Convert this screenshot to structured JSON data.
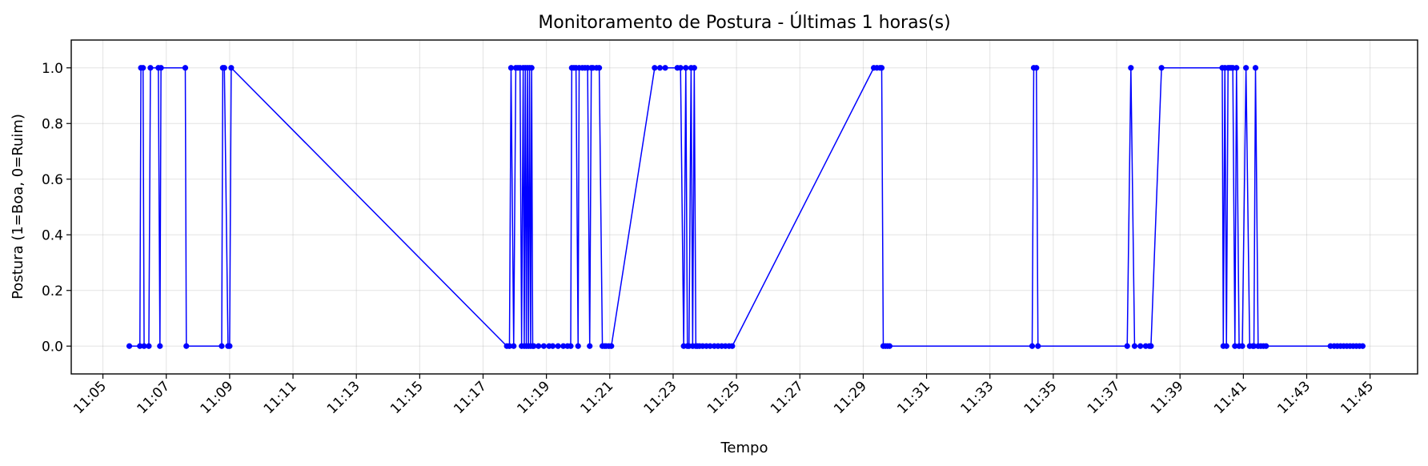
{
  "chart_data": {
    "type": "line",
    "title": "Monitoramento de Postura - Últimas 1 horas(s)",
    "xlabel": "Tempo",
    "ylabel": "Postura (1=Boa, 0=Ruim)",
    "grid": true,
    "line_color": "#0000ff",
    "marker": "circle",
    "xlim": [
      "11:04:00",
      "11:46:30"
    ],
    "ylim": [
      -0.1,
      1.1
    ],
    "x_ticks": [
      "11:05",
      "11:07",
      "11:09",
      "11:11",
      "11:13",
      "11:15",
      "11:17",
      "11:19",
      "11:21",
      "11:23",
      "11:25",
      "11:27",
      "11:29",
      "11:31",
      "11:33",
      "11:35",
      "11:37",
      "11:39",
      "11:41",
      "11:43",
      "11:45"
    ],
    "y_ticks": [
      "0.0",
      "0.2",
      "0.4",
      "0.6",
      "0.8",
      "1.0"
    ],
    "series": [
      {
        "x": [
          "11:05:50",
          "11:06:10",
          "11:06:12",
          "11:06:16",
          "11:06:18",
          "11:06:27",
          "11:06:30",
          "11:06:45",
          "11:06:48",
          "11:06:50",
          "11:07:36",
          "11:07:38",
          "11:08:45",
          "11:08:47",
          "11:08:50",
          "11:08:57",
          "11:09:00",
          "11:09:03",
          "11:17:45",
          "11:17:50",
          "11:17:53",
          "11:17:58",
          "11:18:02",
          "11:18:06",
          "11:18:10",
          "11:18:13",
          "11:18:16",
          "11:18:18",
          "11:18:20",
          "11:18:22",
          "11:18:24",
          "11:18:26",
          "11:18:28",
          "11:18:30",
          "11:18:32",
          "11:18:34",
          "11:18:36",
          "11:18:45",
          "11:18:55",
          "11:19:05",
          "11:19:12",
          "11:19:22",
          "11:19:32",
          "11:19:40",
          "11:19:46",
          "11:19:48",
          "11:19:52",
          "11:19:56",
          "11:20:00",
          "11:20:02",
          "11:20:08",
          "11:20:13",
          "11:20:18",
          "11:20:22",
          "11:20:25",
          "11:20:28",
          "11:20:35",
          "11:20:40",
          "11:20:46",
          "11:20:50",
          "11:20:53",
          "11:20:58",
          "11:21:03",
          "11:22:25",
          "11:22:35",
          "11:22:45",
          "11:23:08",
          "11:23:14",
          "11:23:20",
          "11:23:24",
          "11:23:27",
          "11:23:30",
          "11:23:34",
          "11:23:37",
          "11:23:40",
          "11:23:43",
          "11:23:46",
          "11:23:50",
          "11:23:56",
          "11:24:03",
          "11:24:10",
          "11:24:18",
          "11:24:25",
          "11:24:32",
          "11:24:39",
          "11:24:46",
          "11:24:52",
          "11:29:20",
          "11:29:26",
          "11:29:32",
          "11:29:35",
          "11:29:38",
          "11:29:42",
          "11:29:46",
          "11:29:50",
          "11:34:20",
          "11:34:23",
          "11:34:28",
          "11:34:31",
          "11:37:20",
          "11:37:27",
          "11:37:34",
          "11:37:45",
          "11:37:55",
          "11:38:02",
          "11:38:05",
          "11:38:25",
          "11:40:20",
          "11:40:22",
          "11:40:25",
          "11:40:28",
          "11:40:31",
          "11:40:34",
          "11:40:37",
          "11:40:40",
          "11:40:44",
          "11:40:47",
          "11:40:52",
          "11:40:58",
          "11:41:05",
          "11:41:12",
          "11:41:18",
          "11:41:20",
          "11:41:23",
          "11:41:28",
          "11:41:33",
          "11:41:38",
          "11:41:43",
          "11:43:45",
          "11:43:52",
          "11:43:58",
          "11:44:04",
          "11:44:10",
          "11:44:16",
          "11:44:22",
          "11:44:28",
          "11:44:34",
          "11:44:40",
          "11:44:46"
        ],
        "y": [
          0,
          0,
          1,
          1,
          0,
          0,
          1,
          1,
          0,
          1,
          1,
          0,
          0,
          1,
          1,
          0,
          0,
          1,
          0,
          0,
          1,
          0,
          1,
          1,
          1,
          0,
          1,
          0,
          1,
          0,
          1,
          0,
          1,
          0,
          1,
          0,
          0,
          0,
          0,
          0,
          0,
          0,
          0,
          0,
          0,
          1,
          1,
          1,
          0,
          1,
          1,
          1,
          1,
          0,
          1,
          1,
          1,
          1,
          0,
          0,
          0,
          0,
          0,
          1,
          1,
          1,
          1,
          1,
          0,
          1,
          0,
          0,
          1,
          0,
          1,
          0,
          0,
          0,
          0,
          0,
          0,
          0,
          0,
          0,
          0,
          0,
          0,
          1,
          1,
          1,
          1,
          0,
          0,
          0,
          0,
          0,
          1,
          1,
          0,
          0,
          1,
          0,
          0,
          0,
          0,
          0,
          1,
          1,
          0,
          1,
          0,
          1,
          1,
          1,
          1,
          0,
          1,
          0,
          0,
          1,
          0,
          0,
          0,
          1,
          0,
          0,
          0,
          0,
          0,
          0,
          0,
          0,
          0,
          0,
          0,
          0,
          0,
          0,
          0
        ]
      }
    ]
  }
}
